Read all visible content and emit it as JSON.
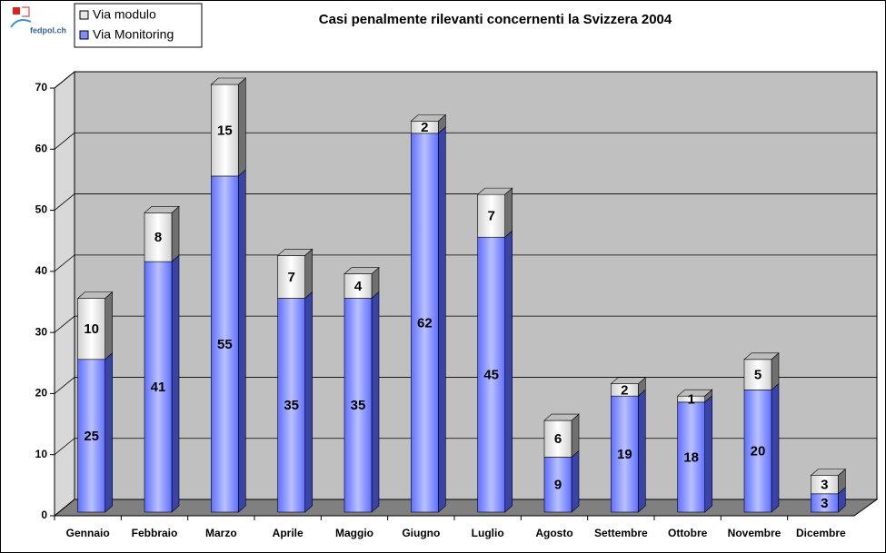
{
  "chart_data": {
    "type": "bar",
    "stacked": true,
    "three_d": true,
    "title": "Casi penalmente rilevanti concernenti la Svizzera 2004",
    "logo": "fedpol.ch",
    "categories": [
      "Gennaio",
      "Febbraio",
      "Marzo",
      "Aprile",
      "Maggio",
      "Giugno",
      "Luglio",
      "Agosto",
      "Settembre",
      "Ottobre",
      "Novembre",
      "Dicembre"
    ],
    "series": [
      {
        "name": "Via Monitoring",
        "color": "#7f8cff",
        "values": [
          25,
          41,
          55,
          35,
          35,
          62,
          45,
          9,
          19,
          18,
          20,
          3
        ]
      },
      {
        "name": "Via modulo",
        "color": "#e8e8e8",
        "values": [
          10,
          8,
          15,
          7,
          4,
          2,
          7,
          6,
          2,
          1,
          5,
          3
        ]
      }
    ],
    "ylim": [
      0,
      70
    ],
    "yticks": [
      0,
      10,
      20,
      30,
      40,
      50,
      60,
      70
    ],
    "grid": true
  }
}
